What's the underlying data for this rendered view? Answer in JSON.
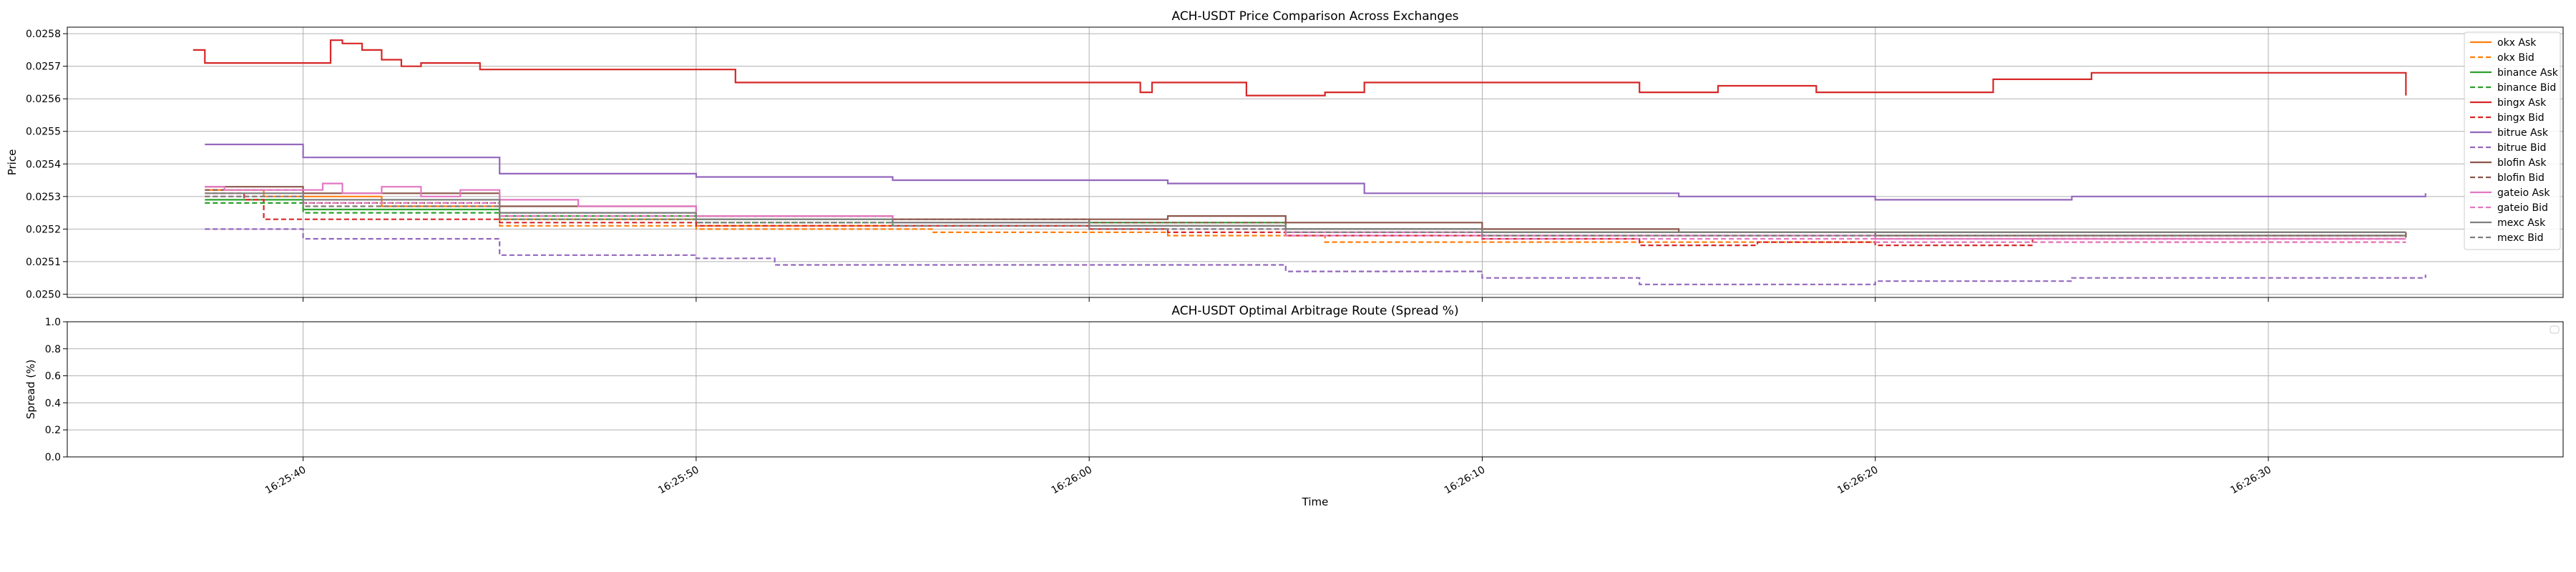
{
  "chart_data": [
    {
      "type": "line",
      "title": "ACH-USDT Price Comparison Across Exchanges",
      "xlabel": "",
      "ylabel": "Price",
      "xlim": [
        "16:25:34.0",
        "16:26:37.5"
      ],
      "ylim": [
        0.02499,
        0.02582
      ],
      "yticks": [
        0.025,
        0.0251,
        0.0252,
        0.0253,
        0.0254,
        0.0255,
        0.0256,
        0.0257,
        0.0258
      ],
      "ytick_labels": [
        "0.0250",
        "0.0251",
        "0.0252",
        "0.0253",
        "0.0254",
        "0.0255",
        "0.0256",
        "0.0257",
        "0.0258"
      ],
      "grid": true,
      "legend_position": "top-right",
      "series": [
        {
          "name": "okx Ask",
          "color": "#ff7f0e",
          "dash": "solid",
          "points": [
            [
              "16:25:37.5",
              0.02532
            ],
            [
              "16:25:39.0",
              0.0253
            ],
            [
              "16:25:42.0",
              0.02527
            ],
            [
              "16:25:45.0",
              0.02523
            ],
            [
              "16:25:50.0",
              0.02521
            ],
            [
              "16:25:57.0",
              0.02521
            ],
            [
              "16:26:01.0",
              0.02521
            ],
            [
              "16:26:05.0",
              0.0252
            ],
            [
              "16:26:10.0",
              0.02519
            ],
            [
              "16:26:15.0",
              0.02519
            ],
            [
              "16:26:25.0",
              0.02519
            ],
            [
              "16:26:33.5",
              0.02519
            ]
          ]
        },
        {
          "name": "okx Bid",
          "color": "#ff7f0e",
          "dash": "dashed",
          "points": [
            [
              "16:25:37.5",
              0.0253
            ],
            [
              "16:25:40.0",
              0.02527
            ],
            [
              "16:25:45.0",
              0.02521
            ],
            [
              "16:25:50.0",
              0.0252
            ],
            [
              "16:25:56.0",
              0.02519
            ],
            [
              "16:26:02.0",
              0.02518
            ],
            [
              "16:26:06.0",
              0.02516
            ],
            [
              "16:26:12.0",
              0.02516
            ],
            [
              "16:26:20.0",
              0.02516
            ],
            [
              "16:26:33.5",
              0.02516
            ]
          ]
        },
        {
          "name": "binance Ask",
          "color": "#2ca02c",
          "dash": "solid",
          "points": [
            [
              "16:25:37.5",
              0.02529
            ],
            [
              "16:25:40.0",
              0.02526
            ],
            [
              "16:25:45.0",
              0.02524
            ],
            [
              "16:25:50.0",
              0.02523
            ],
            [
              "16:25:55.0",
              0.02522
            ],
            [
              "16:26:00.0",
              0.02522
            ],
            [
              "16:26:05.0",
              0.0252
            ],
            [
              "16:26:10.0",
              0.02519
            ],
            [
              "16:26:20.0",
              0.02519
            ],
            [
              "16:26:33.5",
              0.02519
            ]
          ]
        },
        {
          "name": "binance Bid",
          "color": "#2ca02c",
          "dash": "dashed",
          "points": [
            [
              "16:25:37.5",
              0.02528
            ],
            [
              "16:25:40.0",
              0.02525
            ],
            [
              "16:25:45.0",
              0.02523
            ],
            [
              "16:25:50.0",
              0.02522
            ],
            [
              "16:25:55.0",
              0.02521
            ],
            [
              "16:26:00.0",
              0.02521
            ],
            [
              "16:26:05.0",
              0.02519
            ],
            [
              "16:26:10.0",
              0.02518
            ],
            [
              "16:26:20.0",
              0.02518
            ],
            [
              "16:26:33.5",
              0.02518
            ]
          ]
        },
        {
          "name": "bingx Ask",
          "color": "#d62728",
          "dash": "solid",
          "points": [
            [
              "16:25:37.2",
              0.02575
            ],
            [
              "16:25:37.5",
              0.02571
            ],
            [
              "16:25:40.5",
              0.02571
            ],
            [
              "16:25:40.7",
              0.02578
            ],
            [
              "16:25:41.0",
              0.02577
            ],
            [
              "16:25:41.5",
              0.02575
            ],
            [
              "16:25:42.0",
              0.02572
            ],
            [
              "16:25:42.5",
              0.0257
            ],
            [
              "16:25:43.0",
              0.02571
            ],
            [
              "16:25:44.5",
              0.02569
            ],
            [
              "16:25:50.0",
              0.02569
            ],
            [
              "16:25:51.0",
              0.02565
            ],
            [
              "16:26:01.0",
              0.02565
            ],
            [
              "16:26:01.3",
              0.02562
            ],
            [
              "16:26:01.6",
              0.02565
            ],
            [
              "16:26:03.5",
              0.02565
            ],
            [
              "16:26:04.0",
              0.02561
            ],
            [
              "16:26:06.0",
              0.02562
            ],
            [
              "16:26:07.0",
              0.02565
            ],
            [
              "16:26:13.0",
              0.02565
            ],
            [
              "16:26:14.0",
              0.02562
            ],
            [
              "16:26:15.0",
              0.02562
            ],
            [
              "16:26:16.0",
              0.02564
            ],
            [
              "16:26:18.0",
              0.02564
            ],
            [
              "16:26:18.5",
              0.02562
            ],
            [
              "16:26:22.0",
              0.02562
            ],
            [
              "16:26:23.0",
              0.02566
            ],
            [
              "16:26:25.0",
              0.02566
            ],
            [
              "16:26:25.5",
              0.02568
            ],
            [
              "16:26:33.0",
              0.02568
            ],
            [
              "16:26:33.5",
              0.02561
            ]
          ]
        },
        {
          "name": "bingx Bid",
          "color": "#d62728",
          "dash": "dashed",
          "points": [
            [
              "16:25:37.5",
              0.02531
            ],
            [
              "16:25:38.5",
              0.02529
            ],
            [
              "16:25:39.0",
              0.02523
            ],
            [
              "16:25:45.0",
              0.02522
            ],
            [
              "16:25:50.0",
              0.02521
            ],
            [
              "16:25:55.0",
              0.02521
            ],
            [
              "16:26:00.0",
              0.0252
            ],
            [
              "16:26:02.0",
              0.02519
            ],
            [
              "16:26:05.0",
              0.02518
            ],
            [
              "16:26:10.0",
              0.02517
            ],
            [
              "16:26:14.0",
              0.02515
            ],
            [
              "16:26:17.0",
              0.02516
            ],
            [
              "16:26:20.0",
              0.02515
            ],
            [
              "16:26:24.0",
              0.02517
            ],
            [
              "16:26:33.5",
              0.02517
            ]
          ]
        },
        {
          "name": "bitrue Ask",
          "color": "#9467bd",
          "dash": "solid",
          "points": [
            [
              "16:25:37.5",
              0.02546
            ],
            [
              "16:25:40.0",
              0.02542
            ],
            [
              "16:25:45.0",
              0.02537
            ],
            [
              "16:25:50.0",
              0.02536
            ],
            [
              "16:25:55.0",
              0.02535
            ],
            [
              "16:26:02.0",
              0.02534
            ],
            [
              "16:26:05.0",
              0.02534
            ],
            [
              "16:26:07.0",
              0.02531
            ],
            [
              "16:26:10.0",
              0.02531
            ],
            [
              "16:26:15.0",
              0.0253
            ],
            [
              "16:26:20.0",
              0.02529
            ],
            [
              "16:26:25.0",
              0.0253
            ],
            [
              "16:26:34.0",
              0.02531
            ]
          ]
        },
        {
          "name": "bitrue Bid",
          "color": "#9467bd",
          "dash": "dashed",
          "points": [
            [
              "16:25:37.5",
              0.0252
            ],
            [
              "16:25:40.0",
              0.02517
            ],
            [
              "16:25:45.0",
              0.02512
            ],
            [
              "16:25:50.0",
              0.02511
            ],
            [
              "16:25:52.0",
              0.02509
            ],
            [
              "16:26:03.5",
              0.02509
            ],
            [
              "16:26:05.0",
              0.02507
            ],
            [
              "16:26:10.0",
              0.02505
            ],
            [
              "16:26:14.0",
              0.02503
            ],
            [
              "16:26:20.0",
              0.02504
            ],
            [
              "16:26:25.0",
              0.02505
            ],
            [
              "16:26:34.0",
              0.02506
            ]
          ]
        },
        {
          "name": "blofin Ask",
          "color": "#8c564b",
          "dash": "solid",
          "points": [
            [
              "16:25:37.5",
              0.02533
            ],
            [
              "16:25:40.0",
              0.02531
            ],
            [
              "16:25:45.0",
              0.02527
            ],
            [
              "16:25:50.0",
              0.02524
            ],
            [
              "16:25:55.0",
              0.02523
            ],
            [
              "16:26:02.0",
              0.02524
            ],
            [
              "16:26:05.0",
              0.02522
            ],
            [
              "16:26:10.0",
              0.0252
            ],
            [
              "16:26:15.0",
              0.02519
            ],
            [
              "16:26:20.0",
              0.02518
            ],
            [
              "16:26:33.5",
              0.02519
            ]
          ]
        },
        {
          "name": "blofin Bid",
          "color": "#8c564b",
          "dash": "dashed",
          "points": [
            [
              "16:25:37.5",
              0.02532
            ],
            [
              "16:25:40.0",
              0.02528
            ],
            [
              "16:25:45.0",
              0.02525
            ],
            [
              "16:25:50.0",
              0.02524
            ],
            [
              "16:25:55.0",
              0.02523
            ],
            [
              "16:26:00.0",
              0.02522
            ],
            [
              "16:26:05.0",
              0.0252
            ],
            [
              "16:26:10.0",
              0.02518
            ],
            [
              "16:26:20.0",
              0.02517
            ],
            [
              "16:26:33.5",
              0.02518
            ]
          ]
        },
        {
          "name": "gateio Ask",
          "color": "#e377c2",
          "dash": "solid",
          "points": [
            [
              "16:25:37.5",
              0.02533
            ],
            [
              "16:25:38.0",
              0.02532
            ],
            [
              "16:25:40.5",
              0.02534
            ],
            [
              "16:25:41.0",
              0.02531
            ],
            [
              "16:25:42.0",
              0.02533
            ],
            [
              "16:25:43.0",
              0.0253
            ],
            [
              "16:25:44.0",
              0.02532
            ],
            [
              "16:25:45.0",
              0.02529
            ],
            [
              "16:25:47.0",
              0.02527
            ],
            [
              "16:25:50.0",
              0.02524
            ],
            [
              "16:25:55.0",
              0.02522
            ],
            [
              "16:26:00.0",
              0.02521
            ],
            [
              "16:26:05.0",
              0.02519
            ],
            [
              "16:26:10.0",
              0.02518
            ],
            [
              "16:26:20.0",
              0.02517
            ],
            [
              "16:26:33.5",
              0.02517
            ]
          ]
        },
        {
          "name": "gateio Bid",
          "color": "#e377c2",
          "dash": "dashed",
          "points": [
            [
              "16:25:37.5",
              0.0253
            ],
            [
              "16:25:40.0",
              0.02528
            ],
            [
              "16:25:45.0",
              0.02524
            ],
            [
              "16:25:50.0",
              0.02522
            ],
            [
              "16:25:55.0",
              0.02521
            ],
            [
              "16:26:00.0",
              0.0252
            ],
            [
              "16:26:05.0",
              0.02518
            ],
            [
              "16:26:10.0",
              0.02517
            ],
            [
              "16:26:20.0",
              0.02516
            ],
            [
              "16:26:33.5",
              0.02516
            ]
          ]
        },
        {
          "name": "mexc Ask",
          "color": "#7f7f7f",
          "dash": "solid",
          "points": [
            [
              "16:25:37.5",
              0.02531
            ],
            [
              "16:25:40.0",
              0.02529
            ],
            [
              "16:25:45.0",
              0.02525
            ],
            [
              "16:25:50.0",
              0.02523
            ],
            [
              "16:25:55.0",
              0.02522
            ],
            [
              "16:26:00.0",
              0.02521
            ],
            [
              "16:26:05.0",
              0.0252
            ],
            [
              "16:26:10.0",
              0.02519
            ],
            [
              "16:26:20.0",
              0.02519
            ],
            [
              "16:26:33.5",
              0.02519
            ]
          ]
        },
        {
          "name": "mexc Bid",
          "color": "#7f7f7f",
          "dash": "dashed",
          "points": [
            [
              "16:25:37.5",
              0.0253
            ],
            [
              "16:25:40.0",
              0.02527
            ],
            [
              "16:25:45.0",
              0.02523
            ],
            [
              "16:25:50.0",
              0.02522
            ],
            [
              "16:25:55.0",
              0.02521
            ],
            [
              "16:26:00.0",
              0.0252
            ],
            [
              "16:26:05.0",
              0.02519
            ],
            [
              "16:26:10.0",
              0.02518
            ],
            [
              "16:26:20.0",
              0.02518
            ],
            [
              "16:26:33.5",
              0.02518
            ]
          ]
        }
      ]
    },
    {
      "type": "line",
      "title": "ACH-USDT Optimal Arbitrage Route (Spread %)",
      "xlabel": "Time",
      "ylabel": "Spread (%)",
      "xlim": [
        "16:25:34.0",
        "16:26:37.5"
      ],
      "ylim": [
        0.0,
        1.0
      ],
      "yticks": [
        0.0,
        0.2,
        0.4,
        0.6,
        0.8,
        1.0
      ],
      "ytick_labels": [
        "0.0",
        "0.2",
        "0.4",
        "0.6",
        "0.8",
        "1.0"
      ],
      "xticks": [
        "16:25:40",
        "16:25:50",
        "16:26:00",
        "16:26:10",
        "16:26:20",
        "16:26:30"
      ],
      "xtick_labels": [
        "16:25:40",
        "16:25:50",
        "16:26:00",
        "16:26:10",
        "16:26:20",
        "16:26:30"
      ],
      "grid": true,
      "legend_position": "top-right",
      "series": []
    }
  ]
}
